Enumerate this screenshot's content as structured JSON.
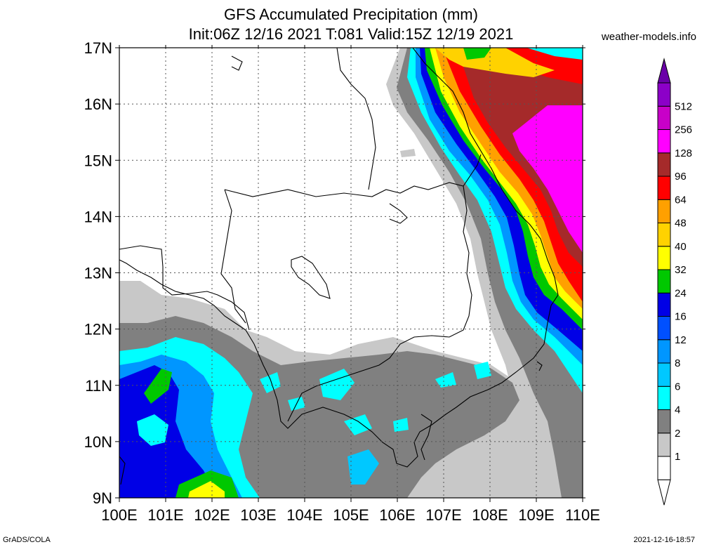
{
  "header": {
    "title": "GFS Accumulated Precipitation (mm)",
    "subtitle": "Init:06Z 12/16 2021 T:081 Valid:15Z 12/19 2021",
    "site": "weather-models.info"
  },
  "footer": {
    "left": "GrADS/COLA",
    "right": "2021-12-16-18:57"
  },
  "map": {
    "lon_range": [
      100,
      110
    ],
    "lat_range": [
      9,
      17
    ],
    "lon_labels": [
      "100E",
      "101E",
      "102E",
      "103E",
      "104E",
      "105E",
      "106E",
      "107E",
      "108E",
      "109E",
      "110E"
    ],
    "lat_labels": [
      "9N",
      "10N",
      "11N",
      "12N",
      "13N",
      "14N",
      "15N",
      "16N",
      "17N"
    ],
    "grid": true
  },
  "legend": {
    "levels": [
      {
        "label": "1",
        "color": "#c8c8c8"
      },
      {
        "label": "2",
        "color": "#808080"
      },
      {
        "label": "4",
        "color": "#00ffff"
      },
      {
        "label": "6",
        "color": "#00c8ff"
      },
      {
        "label": "8",
        "color": "#0096ff"
      },
      {
        "label": "12",
        "color": "#0050ff"
      },
      {
        "label": "16",
        "color": "#0000e6"
      },
      {
        "label": "24",
        "color": "#00c800"
      },
      {
        "label": "32",
        "color": "#ffff00"
      },
      {
        "label": "40",
        "color": "#ffd200"
      },
      {
        "label": "48",
        "color": "#ffa000"
      },
      {
        "label": "64",
        "color": "#ff0000"
      },
      {
        "label": "96",
        "color": "#a52a2a"
      },
      {
        "label": "128",
        "color": "#ff00ff"
      },
      {
        "label": "256",
        "color": "#c800c8"
      },
      {
        "label": "512",
        "color": "#8c00c8"
      }
    ],
    "below_color": "#ffffff",
    "above_color": "#6a00a8"
  }
}
